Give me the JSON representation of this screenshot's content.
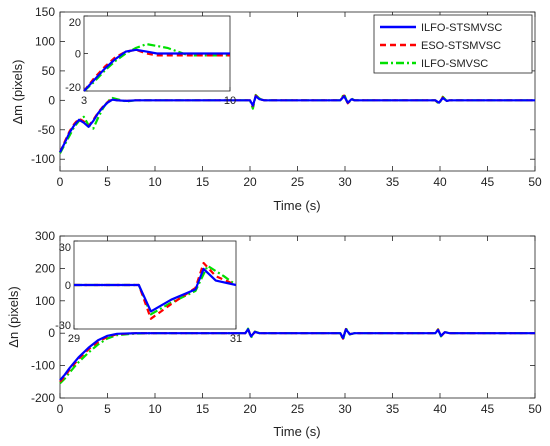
{
  "chart_data": [
    {
      "type": "line",
      "xlabel": "Time (s)",
      "ylabel": "Δm (pixels)",
      "xlim": [
        0,
        50
      ],
      "ylim": [
        -120,
        150
      ],
      "xticks": [
        "0",
        "5",
        "10",
        "15",
        "20",
        "25",
        "30",
        "35",
        "40",
        "45",
        "50"
      ],
      "yticks": [
        "-100",
        "-50",
        "0",
        "50",
        "100",
        "150"
      ],
      "grid": false,
      "legend_position": "top-right",
      "series": [
        {
          "name": "ILFO-STSMVSC",
          "color": "#0000ff",
          "style": "solid",
          "x": [
            0,
            0.5,
            1,
            1.5,
            2,
            2.5,
            3,
            3.5,
            4,
            4.5,
            5,
            5.5,
            6,
            7,
            8,
            10,
            12,
            15,
            18,
            20,
            20.3,
            20.6,
            21,
            21.5,
            22,
            25,
            29.5,
            29.9,
            30.3,
            30.7,
            31,
            35,
            39.5,
            39.9,
            40.3,
            40.7,
            41,
            45,
            50
          ],
          "y": [
            -88,
            -72,
            -55,
            -42,
            -33,
            -38,
            -45,
            -35,
            -22,
            -12,
            -4,
            1,
            0,
            -1,
            0,
            0,
            0,
            0,
            0,
            0,
            -9,
            7,
            2,
            0,
            0,
            0,
            0,
            7,
            -4,
            2,
            0,
            0,
            0,
            -4,
            4,
            -1,
            0,
            0,
            0
          ]
        },
        {
          "name": "ESO-STSMVSC",
          "color": "#ff0000",
          "style": "dashed",
          "x": [
            0,
            0.5,
            1,
            1.5,
            2,
            2.5,
            3,
            3.5,
            4,
            4.5,
            5,
            5.5,
            6,
            7,
            8,
            10,
            12,
            15,
            18,
            20,
            20.3,
            20.6,
            21,
            21.5,
            22,
            25,
            29.5,
            29.9,
            30.3,
            30.7,
            31,
            35,
            39.5,
            39.9,
            40.3,
            40.7,
            41,
            45,
            50
          ],
          "y": [
            -88,
            -70,
            -53,
            -40,
            -31,
            -36,
            -44,
            -33,
            -21,
            -11,
            -3,
            2,
            0,
            -1,
            0,
            0,
            0,
            0,
            0,
            0,
            -10,
            8,
            2,
            0,
            0,
            0,
            0,
            8,
            -5,
            2,
            0,
            0,
            0,
            -5,
            5,
            -1,
            0,
            0,
            0
          ]
        },
        {
          "name": "ILFO-SMVSC",
          "color": "#00e000",
          "style": "dashdot",
          "x": [
            0,
            0.5,
            1,
            1.5,
            2,
            2.5,
            3,
            3.5,
            4,
            4.5,
            5,
            5.5,
            6,
            7,
            8,
            10,
            12,
            15,
            18,
            20,
            20.3,
            20.6,
            21,
            21.5,
            22,
            25,
            29.5,
            29.9,
            30.3,
            30.7,
            31,
            35,
            39.5,
            39.9,
            40.3,
            40.7,
            41,
            45,
            50
          ],
          "y": [
            -90,
            -75,
            -60,
            -45,
            -35,
            -28,
            -42,
            -48,
            -30,
            -14,
            -2,
            4,
            2,
            -2,
            0,
            0,
            0,
            0,
            0,
            0,
            -14,
            9,
            3,
            0,
            0,
            0,
            0,
            11,
            -6,
            3,
            0,
            0,
            0,
            -6,
            6,
            -1,
            0,
            0,
            0
          ]
        }
      ],
      "inset": {
        "xlim": [
          3,
          10
        ],
        "ylim": [
          -20,
          20
        ],
        "xticks": [
          "3",
          "10"
        ],
        "yticks": [
          "-20",
          "0",
          "20"
        ],
        "series": [
          {
            "name": "ILFO-STSMVSC",
            "x": [
              3,
              3.5,
              4,
              4.5,
              5,
              5.5,
              6,
              6.5,
              7,
              7.5,
              8,
              9,
              10
            ],
            "y": [
              -20,
              -14,
              -8,
              -3,
              1,
              2,
              1,
              0,
              0,
              0,
              0,
              0,
              0
            ]
          },
          {
            "name": "ESO-STSMVSC",
            "x": [
              3,
              3.5,
              4,
              4.5,
              5,
              5.5,
              6,
              6.5,
              7,
              7.5,
              8,
              9,
              10
            ],
            "y": [
              -20,
              -13,
              -7,
              -2,
              1,
              2,
              0,
              -1,
              -1,
              -1,
              -1,
              -1,
              -1
            ]
          },
          {
            "name": "ILFO-SMVSC",
            "x": [
              3,
              3.5,
              4,
              4.5,
              5,
              5.5,
              6,
              6.5,
              7,
              7.5,
              8,
              9,
              10
            ],
            "y": [
              -20,
              -15,
              -9,
              -4,
              0,
              3,
              5,
              4,
              3,
              1,
              -1,
              -1,
              -1
            ]
          }
        ]
      }
    },
    {
      "type": "line",
      "xlabel": "Time (s)",
      "ylabel": "Δn (pixels)",
      "xlim": [
        0,
        50
      ],
      "ylim": [
        -200,
        300
      ],
      "xticks": [
        "0",
        "5",
        "10",
        "15",
        "20",
        "25",
        "30",
        "35",
        "40",
        "45",
        "50"
      ],
      "yticks": [
        "-200",
        "-100",
        "0",
        "100",
        "200",
        "300"
      ],
      "grid": false,
      "series": [
        {
          "name": "ILFO-STSMVSC",
          "color": "#0000ff",
          "style": "solid",
          "x": [
            0,
            0.5,
            1,
            1.5,
            2,
            3,
            4,
            5,
            6,
            8,
            10,
            15,
            19.5,
            19.8,
            20.1,
            20.5,
            21,
            25,
            29.5,
            29.8,
            30.1,
            30.5,
            31,
            35,
            39.5,
            39.8,
            40.1,
            40.5,
            41,
            45,
            50
          ],
          "y": [
            -145,
            -128,
            -108,
            -90,
            -73,
            -45,
            -22,
            -8,
            -2,
            0,
            0,
            0,
            0,
            12,
            -10,
            4,
            0,
            0,
            0,
            -15,
            12,
            -3,
            0,
            0,
            0,
            10,
            -8,
            3,
            0,
            0,
            0
          ]
        },
        {
          "name": "ESO-STSMVSC",
          "color": "#ff0000",
          "style": "dashed",
          "x": [
            0,
            0.5,
            1,
            1.5,
            2,
            3,
            4,
            5,
            6,
            8,
            10,
            15,
            19.5,
            19.8,
            20.1,
            20.5,
            21,
            25,
            29.5,
            29.8,
            30.1,
            30.5,
            31,
            35,
            39.5,
            39.8,
            40.1,
            40.5,
            41,
            45,
            50
          ],
          "y": [
            -150,
            -133,
            -113,
            -95,
            -78,
            -50,
            -27,
            -11,
            -3,
            0,
            0,
            0,
            0,
            13,
            -11,
            4,
            0,
            0,
            0,
            -17,
            13,
            -3,
            0,
            0,
            0,
            11,
            -9,
            3,
            0,
            0,
            0
          ]
        },
        {
          "name": "ILFO-SMVSC",
          "color": "#00e000",
          "style": "dashdot",
          "x": [
            0,
            0.5,
            1,
            1.5,
            2,
            3,
            4,
            5,
            6,
            8,
            10,
            15,
            19.5,
            19.8,
            20.1,
            20.5,
            21,
            25,
            29.5,
            29.8,
            30.1,
            30.5,
            31,
            35,
            39.5,
            39.8,
            40.1,
            40.5,
            41,
            45,
            50
          ],
          "y": [
            -155,
            -140,
            -122,
            -104,
            -88,
            -60,
            -35,
            -16,
            -6,
            -1,
            0,
            0,
            0,
            14,
            -14,
            5,
            0,
            0,
            0,
            -20,
            15,
            -4,
            0,
            0,
            0,
            12,
            -10,
            4,
            0,
            0,
            0
          ]
        }
      ],
      "inset": {
        "xlim": [
          29,
          31
        ],
        "ylim": [
          -30,
          30
        ],
        "xticks": [
          "29",
          "31"
        ],
        "yticks": [
          "-30",
          "0",
          "30"
        ],
        "series": [
          {
            "name": "ILFO-STSMVSC",
            "x": [
              29,
              29.8,
              29.95,
              30.2,
              30.5,
              30.6,
              30.75,
              31
            ],
            "y": [
              0,
              0,
              -18,
              -10,
              -3,
              11,
              3,
              0
            ]
          },
          {
            "name": "ESO-STSMVSC",
            "x": [
              29,
              29.8,
              29.95,
              30.2,
              30.5,
              30.6,
              30.75,
              31
            ],
            "y": [
              0,
              0,
              -23,
              -13,
              -2,
              15,
              6,
              0
            ]
          },
          {
            "name": "ILFO-SMVSC",
            "x": [
              29,
              29.8,
              29.95,
              30.2,
              30.5,
              30.65,
              30.85,
              31
            ],
            "y": [
              0,
              0,
              -20,
              -12,
              -4,
              13,
              6,
              0
            ]
          }
        ]
      }
    }
  ]
}
